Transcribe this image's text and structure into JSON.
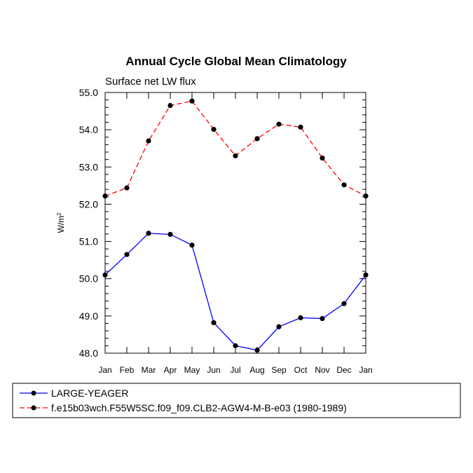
{
  "chart_data": {
    "type": "line",
    "title": "Annual Cycle Global Mean Climatology",
    "subtitle": "Surface net LW flux",
    "xlabel": "",
    "ylabel": "W/m",
    "ylabel_superscript": "2",
    "categories": [
      "Jan",
      "Feb",
      "Mar",
      "Apr",
      "May",
      "Jun",
      "Jul",
      "Aug",
      "Sep",
      "Oct",
      "Nov",
      "Dec",
      "Jan"
    ],
    "ylim": [
      48.0,
      55.0
    ],
    "yticks": [
      "48.0",
      "49.0",
      "50.0",
      "51.0",
      "52.0",
      "53.0",
      "54.0",
      "55.0"
    ],
    "series": [
      {
        "name": "LARGE-YEAGER",
        "color": "#0000ff",
        "dash": "solid",
        "values": [
          50.1,
          50.65,
          51.22,
          51.19,
          50.9,
          48.82,
          48.2,
          48.08,
          48.71,
          48.95,
          48.93,
          49.33,
          50.1
        ]
      },
      {
        "name": "f.e15b03wch.F55W5SC.f09_f09.CLB2-AGW4-M-B-e03 (1980-1989)",
        "color": "#ff0000",
        "dash": "dashed",
        "values": [
          52.22,
          52.44,
          53.7,
          54.65,
          54.77,
          54.01,
          53.3,
          53.76,
          54.15,
          54.07,
          53.24,
          52.52,
          52.22
        ]
      }
    ],
    "legend_position": "bottom"
  }
}
